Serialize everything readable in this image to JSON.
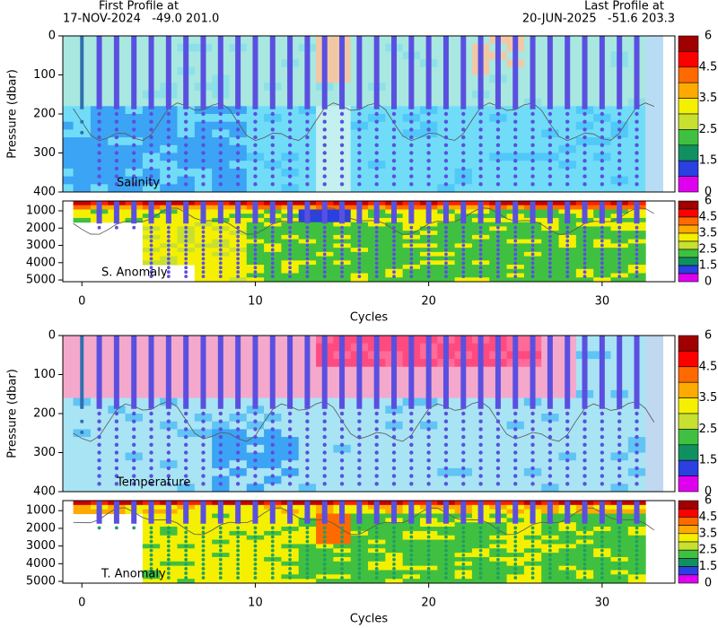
{
  "chart_data": [
    {
      "type": "heatmap",
      "label": "Salinity",
      "ylabel": "Pressure (dbar)",
      "annotations": [
        "First Profile at",
        "17-NOV-2024   -49.0 201.0",
        "Last Profile at",
        "20-JUN-2025   -51.6 203.3"
      ],
      "xlim": [
        -1.1,
        34.2
      ],
      "ylim": [
        0,
        400
      ],
      "yticks": [
        0,
        100,
        200,
        300,
        400
      ],
      "colorbar_ticks": [
        6,
        4.5,
        3.5,
        2.5,
        1.5,
        0
      ]
    },
    {
      "type": "heatmap",
      "label": "S. Anomaly",
      "xlabel": "Cycles",
      "xlim": [
        -1.1,
        34.2
      ],
      "xticks": [
        0,
        10,
        20,
        30
      ],
      "ylim": [
        430,
        5100
      ],
      "yticks": [
        1000,
        2000,
        3000,
        4000,
        5000
      ],
      "colorbar_ticks": [
        6,
        4.5,
        3.5,
        2.5,
        1.5,
        0
      ]
    },
    {
      "type": "heatmap",
      "label": "Temperature",
      "ylabel": "Pressure (dbar)",
      "xlim": [
        -1.1,
        34.2
      ],
      "ylim": [
        0,
        400
      ],
      "yticks": [
        0,
        100,
        200,
        300,
        400
      ],
      "colorbar_ticks": [
        6,
        4.5,
        3.5,
        2.5,
        1.5,
        0
      ]
    },
    {
      "type": "heatmap",
      "label": "T. Anomaly",
      "xlabel": "Cycles",
      "xlim": [
        -1.1,
        34.2
      ],
      "xticks": [
        0,
        10,
        20,
        30
      ],
      "ylim": [
        430,
        5100
      ],
      "yticks": [
        1000,
        2000,
        3000,
        4000,
        5000
      ],
      "colorbar_ticks": [
        6,
        4.5,
        3.5,
        2.5,
        1.5,
        0
      ]
    }
  ]
}
